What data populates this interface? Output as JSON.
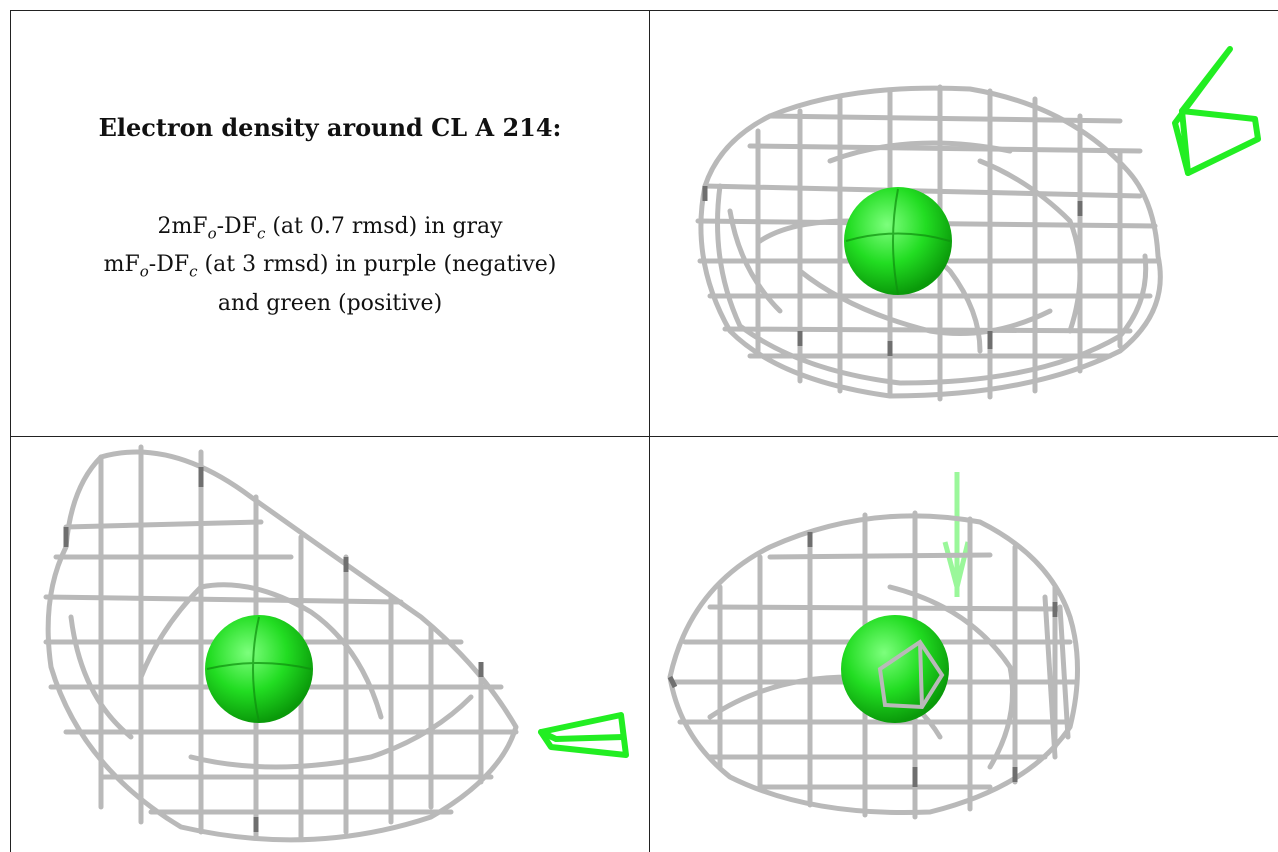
{
  "panel_text": {
    "title": "Electron density around CL A 214:",
    "line1": {
      "a": "2mF",
      "a_sub": "o",
      "b": "-DF",
      "b_sub": "c",
      "rest": " (at 0.7 rmsd) in gray"
    },
    "line2": {
      "a": "mF",
      "a_sub": "o",
      "b": "-DF",
      "b_sub": "c",
      "rest": " (at 3 rmsd) in purple (negative)"
    },
    "line3": "and green (positive)"
  },
  "colors": {
    "mesh_gray": "#b9b9b9",
    "mesh_dark": "#7a7a7a",
    "atom_green": "#22dd22",
    "density_green": "#22ee22",
    "border": "#222222"
  },
  "views": [
    {
      "name": "view-top-right",
      "object": "density-mesh",
      "atom": "sphere-chloride"
    },
    {
      "name": "view-bottom-left",
      "object": "density-mesh",
      "atom": "sphere-chloride"
    },
    {
      "name": "view-bottom-right",
      "object": "density-mesh",
      "atom": "sphere-chloride"
    }
  ]
}
